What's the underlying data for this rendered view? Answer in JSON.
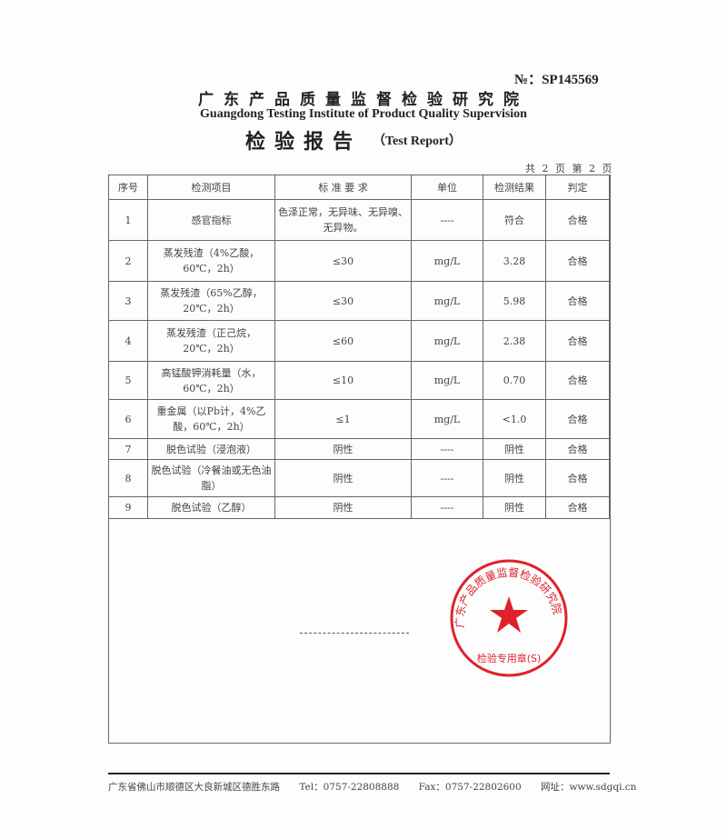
{
  "header": {
    "doc_no": "№：SP145569",
    "org_cn": "广东产品质量监督检验研究院",
    "org_en": "Guangdong Testing Institute of Product Quality Supervision",
    "title_cn": "检验报告",
    "title_en": "（Test Report）",
    "page_info": "共 2 页 第 2 页"
  },
  "table": {
    "headers": [
      "序号",
      "检测项目",
      "标 准 要 求",
      "单位",
      "检测结果",
      "判定"
    ],
    "rows": [
      {
        "no": "1",
        "item": "感官指标",
        "req": "色泽正常，无异味、无异嗅、无异物。",
        "unit": "----",
        "result": "符合",
        "verdict": "合格"
      },
      {
        "no": "2",
        "item": "蒸发残渣（4%乙酸，60℃，2h）",
        "req": "≤30",
        "unit": "mg/L",
        "result": "3.28",
        "verdict": "合格"
      },
      {
        "no": "3",
        "item": "蒸发残渣（65%乙醇，20℃，2h）",
        "req": "≤30",
        "unit": "mg/L",
        "result": "5.98",
        "verdict": "合格"
      },
      {
        "no": "4",
        "item": "蒸发残渣（正己烷，20℃，2h）",
        "req": "≤60",
        "unit": "mg/L",
        "result": "2.38",
        "verdict": "合格"
      },
      {
        "no": "5",
        "item": "高锰酸钾消耗量（水，60℃，2h）",
        "req": "≤10",
        "unit": "mg/L",
        "result": "0.70",
        "verdict": "合格"
      },
      {
        "no": "6",
        "item": "重金属（以Pb计，4%乙酸，60℃，2h）",
        "req": "≤1",
        "unit": "mg/L",
        "result": "<1.0",
        "verdict": "合格"
      },
      {
        "no": "7",
        "item": "脱色试验（浸泡液）",
        "req": "阴性",
        "unit": "----",
        "result": "阴性",
        "verdict": "合格"
      },
      {
        "no": "8",
        "item": "脱色试验（冷餐油或无色油脂）",
        "req": "阴性",
        "unit": "----",
        "result": "阴性",
        "verdict": "合格"
      },
      {
        "no": "9",
        "item": "脱色试验（乙醇）",
        "req": "阴性",
        "unit": "----",
        "result": "阴性",
        "verdict": "合格"
      }
    ]
  },
  "stamp": {
    "ring_text": "广东产品质量监督检验研究院",
    "bottom_text": "检验专用章(S)",
    "color": "#e0212b"
  },
  "footer": {
    "address": "广东省佛山市顺德区大良新城区德胜东路",
    "tel": "Tel：0757-22808888",
    "fax": "Fax：0757-22802600",
    "web": "网址：www.sdgqi.cn"
  }
}
